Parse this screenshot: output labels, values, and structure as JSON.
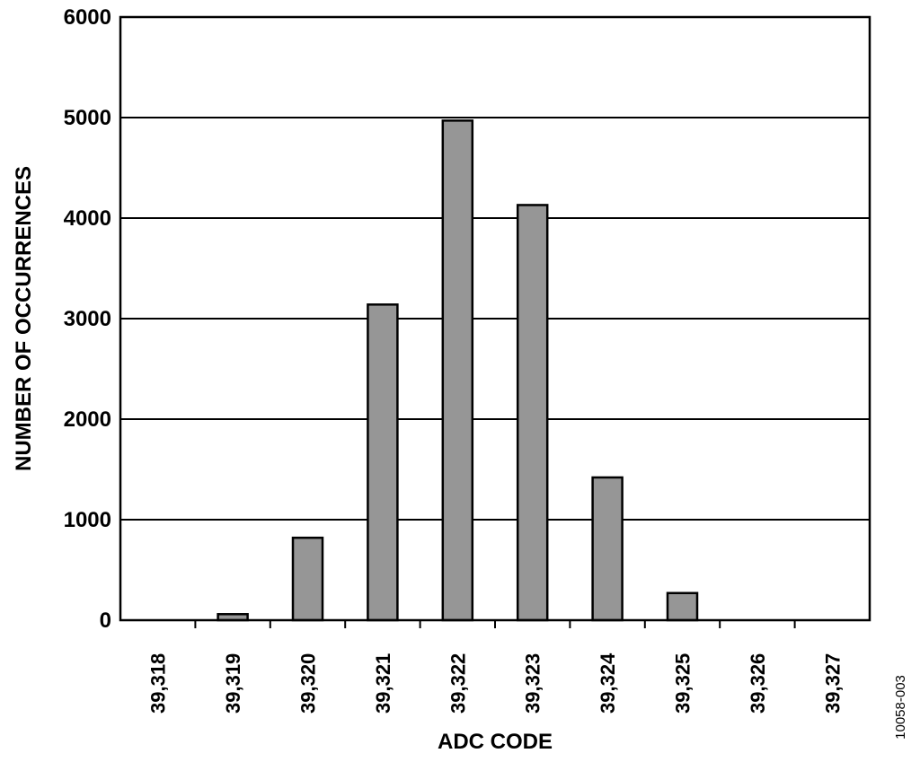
{
  "chart_data": {
    "type": "bar",
    "categories": [
      "39,318",
      "39,319",
      "39,320",
      "39,321",
      "39,322",
      "39,323",
      "39,324",
      "39,325",
      "39,326",
      "39,327"
    ],
    "values": [
      0,
      60,
      820,
      3140,
      4970,
      4130,
      1420,
      270,
      0,
      0
    ],
    "xlabel": "ADC CODE",
    "ylabel": "NUMBER OF OCCURRENCES",
    "ylim": [
      0,
      6000
    ],
    "yticks": [
      "0",
      "1000",
      "2000",
      "3000",
      "4000",
      "5000",
      "6000"
    ],
    "grid": true,
    "bar_color": "#969696",
    "figure_id": "10058-003"
  }
}
